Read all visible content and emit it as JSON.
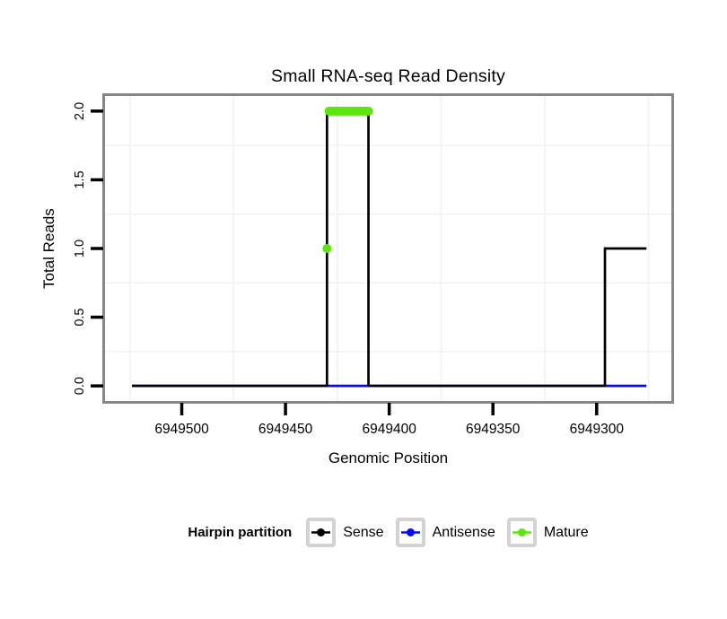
{
  "chart_data": {
    "type": "line",
    "title": "Small RNA-seq Read Density",
    "xlabel": "Genomic Position",
    "ylabel": "Total Reads",
    "x_axis": {
      "reversed": true,
      "range_left": 6949537,
      "range_right": 6949264,
      "ticks": [
        6949500,
        6949450,
        6949400,
        6949350,
        6949300
      ],
      "tick_labels": [
        "6949500",
        "6949450",
        "6949400",
        "6949350",
        "6949300"
      ]
    },
    "y_axis": {
      "range_bottom": -0.11,
      "range_top": 2.11,
      "ticks": [
        0,
        0.5,
        1,
        1.5,
        2
      ],
      "tick_labels": [
        "0.0",
        "0.5",
        "1.0",
        "1.5",
        "2.0"
      ]
    },
    "grid": {
      "minor_x": [
        6949525,
        6949475,
        6949425,
        6949375,
        6949325,
        6949275
      ],
      "minor_y": [
        0.25,
        0.75,
        1.25,
        1.75
      ],
      "color": "#f2f2f2"
    },
    "series": [
      {
        "name": "Antisense",
        "draw": "line",
        "color": "#0909EE",
        "width": 2.7,
        "points": [
          [
            6949524,
            0
          ],
          [
            6949276,
            0
          ]
        ]
      },
      {
        "name": "Sense",
        "draw": "step-line",
        "color": "#000000",
        "width": 2.7,
        "points": [
          [
            6949524,
            0
          ],
          [
            6949430,
            0
          ],
          [
            6949430,
            2
          ],
          [
            6949410,
            2
          ],
          [
            6949410,
            0
          ],
          [
            6949296,
            0
          ],
          [
            6949296,
            1
          ],
          [
            6949276,
            1
          ]
        ]
      },
      {
        "name": "Mature",
        "draw": "points",
        "color": "#5CE60C",
        "marker_radius": 5,
        "points": [
          [
            6949430,
            1
          ],
          [
            6949429,
            2
          ],
          [
            6949428,
            2
          ],
          [
            6949427,
            2
          ],
          [
            6949426,
            2
          ],
          [
            6949425,
            2
          ],
          [
            6949424,
            2
          ],
          [
            6949423,
            2
          ],
          [
            6949422,
            2
          ],
          [
            6949421,
            2
          ],
          [
            6949420,
            2
          ],
          [
            6949419,
            2
          ],
          [
            6949418,
            2
          ],
          [
            6949417,
            2
          ],
          [
            6949416,
            2
          ],
          [
            6949415,
            2
          ],
          [
            6949414,
            2
          ],
          [
            6949413,
            2
          ],
          [
            6949412,
            2
          ],
          [
            6949411,
            2
          ],
          [
            6949410,
            2
          ]
        ]
      }
    ],
    "legend": {
      "title": "Hairpin partition",
      "entries": [
        {
          "label": "Sense",
          "color": "#000000"
        },
        {
          "label": "Antisense",
          "color": "#0909EE"
        },
        {
          "label": "Mature",
          "color": "#5CE60C"
        }
      ]
    },
    "style": {
      "panel_border_color": "#878787",
      "tick_color": "#000000",
      "background": "#ffffff"
    }
  }
}
